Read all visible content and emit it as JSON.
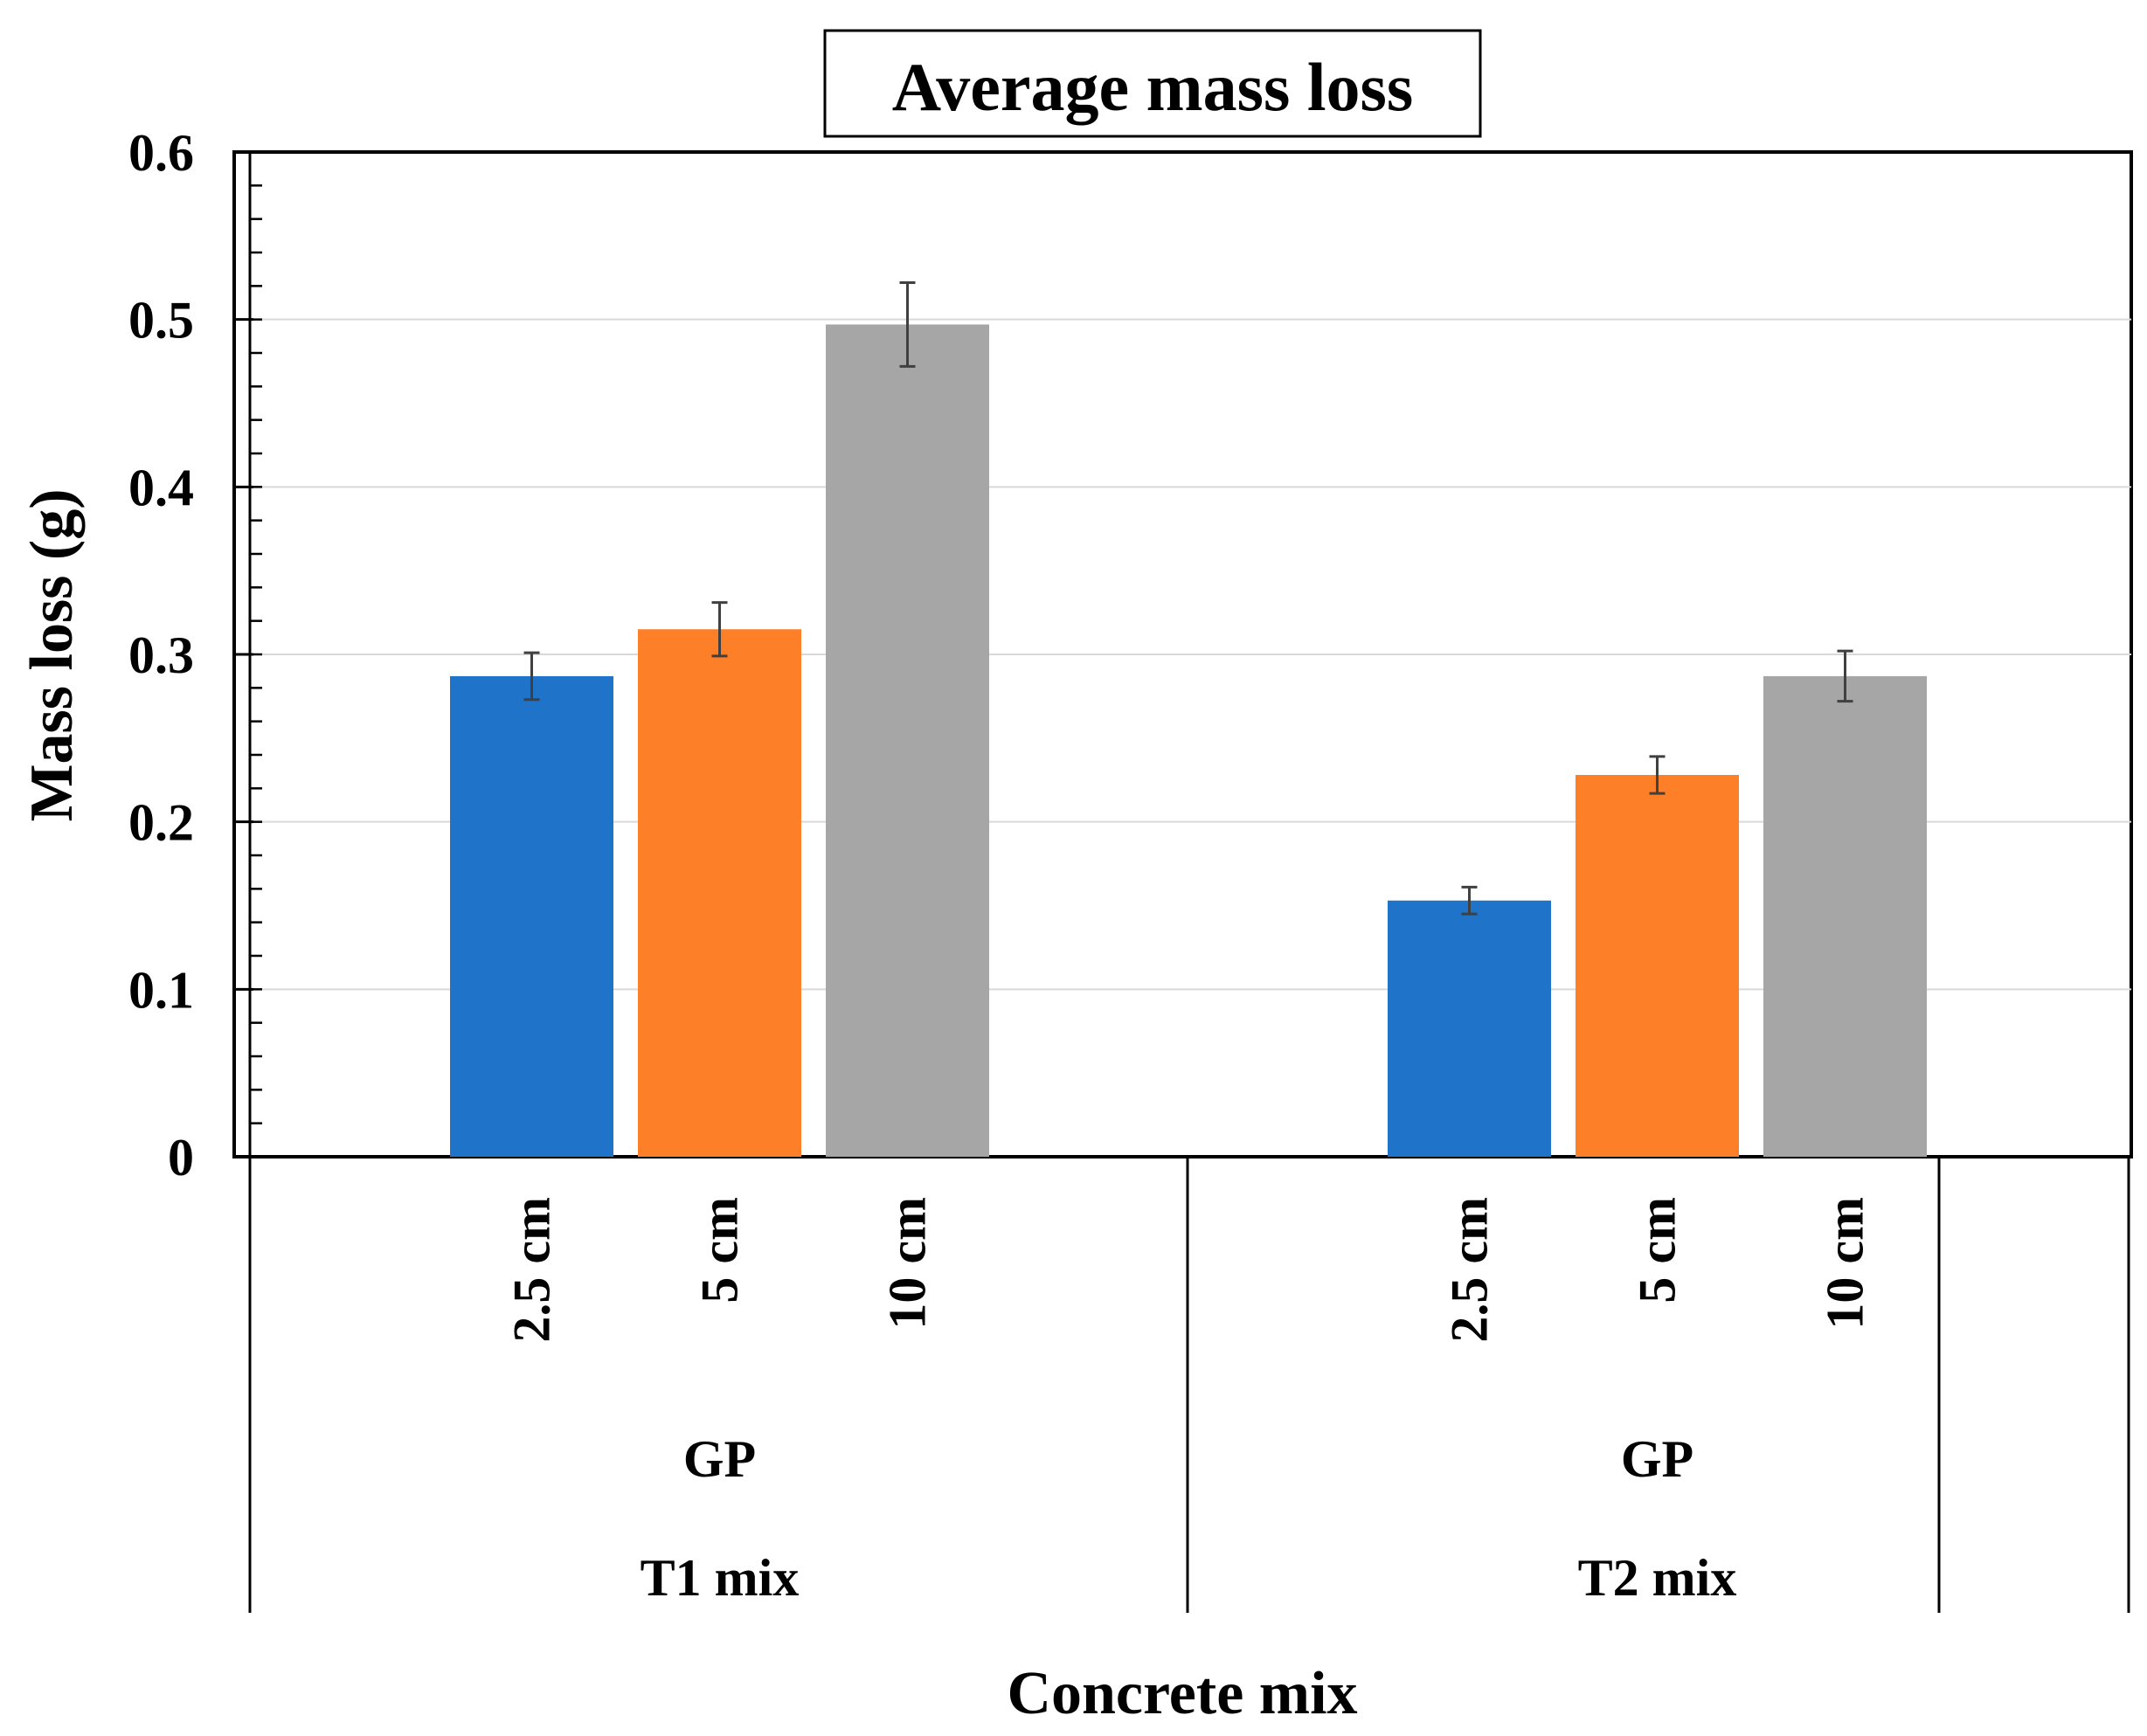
{
  "chart_data": {
    "type": "bar",
    "title": "Average mass loss",
    "xlabel": "Concrete mix",
    "ylabel": "Mass loss (g)",
    "ylim": [
      0,
      0.6
    ],
    "yticks": [
      0,
      0.1,
      0.2,
      0.3,
      0.4,
      0.5,
      0.6
    ],
    "ytick_labels": [
      "0",
      "0.1",
      "0.2",
      "0.3",
      "0.4",
      "0.5",
      "0.6"
    ],
    "grid": true,
    "categories": [
      "2.5 cm",
      "5 cm",
      "10 cm"
    ],
    "groups": [
      {
        "mix_label": "T1 mix",
        "type_label": "GP",
        "bars": [
          {
            "category": "2.5 cm",
            "value": 0.287,
            "error": 0.014,
            "color": "#1f73c8"
          },
          {
            "category": "5 cm",
            "value": 0.315,
            "error": 0.016,
            "color": "#fd7f27"
          },
          {
            "category": "10 cm",
            "value": 0.497,
            "error": 0.025,
            "color": "#a6a6a6"
          }
        ]
      },
      {
        "mix_label": "T2 mix",
        "type_label": "GP",
        "bars": [
          {
            "category": "2.5 cm",
            "value": 0.153,
            "error": 0.008,
            "color": "#1f73c8"
          },
          {
            "category": "5 cm",
            "value": 0.228,
            "error": 0.011,
            "color": "#fd7f27"
          },
          {
            "category": "10 cm",
            "value": 0.287,
            "error": 0.015,
            "color": "#a6a6a6"
          }
        ]
      }
    ]
  }
}
